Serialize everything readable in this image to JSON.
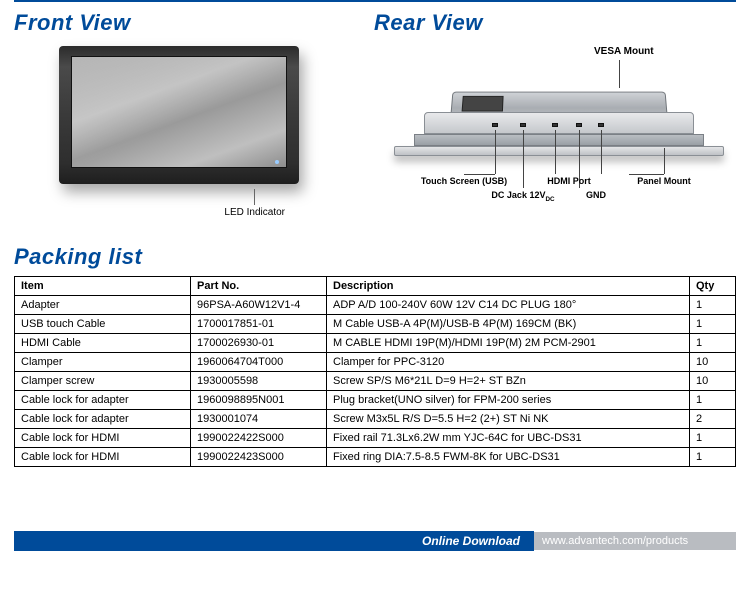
{
  "headings": {
    "front": "Front View",
    "rear": "Rear View",
    "packing": "Packing list"
  },
  "front_view": {
    "led_label": "LED Indicator"
  },
  "rear_view": {
    "vesa": "VESA Mount",
    "touch": "Touch Screen (USB)",
    "dcjack": "DC Jack 12V",
    "dcjack_sub": "DC",
    "hdmi": "HDMI Port",
    "gnd": "GND",
    "panel_mount": "Panel Mount"
  },
  "table": {
    "columns": [
      "Item",
      "Part No.",
      "Description",
      "Qty"
    ],
    "rows": [
      [
        "Adapter",
        "96PSA-A60W12V1-4",
        "ADP A/D 100-240V 60W 12V C14 DC PLUG 180°",
        "1"
      ],
      [
        "USB touch Cable",
        "1700017851-01",
        "M Cable USB-A 4P(M)/USB-B 4P(M) 169CM (BK)",
        "1"
      ],
      [
        "HDMI Cable",
        "1700026930-01",
        "M CABLE HDMI 19P(M)/HDMI 19P(M) 2M PCM-2901",
        "1"
      ],
      [
        "Clamper",
        "1960064704T000",
        "Clamper for PPC-3120",
        "10"
      ],
      [
        "Clamper screw",
        "1930005598",
        "Screw SP/S M6*21L D=9 H=2+ ST BZn",
        "10"
      ],
      [
        "Cable lock for adapter",
        "1960098895N001",
        "Plug bracket(UNO silver) for FPM-200 series",
        "1"
      ],
      [
        "Cable lock for adapter",
        "1930001074",
        "Screw M3x5L R/S D=5.5 H=2 (2+) ST Ni NK",
        "2"
      ],
      [
        "Cable lock for HDMI",
        "1990022422S000",
        "Fixed rail 71.3Lx6.2W mm YJC-64C for UBC-DS31",
        "1"
      ],
      [
        "Cable lock for HDMI",
        "1990022423S000",
        "Fixed ring DIA:7.5-8.5 FWM-8K for UBC-DS31",
        "1"
      ]
    ]
  },
  "footer": {
    "title": "Online Download",
    "url": "www.advantech.com/products"
  },
  "colors": {
    "accent": "#004b9a",
    "footer_grey": "#b9bcc1"
  }
}
